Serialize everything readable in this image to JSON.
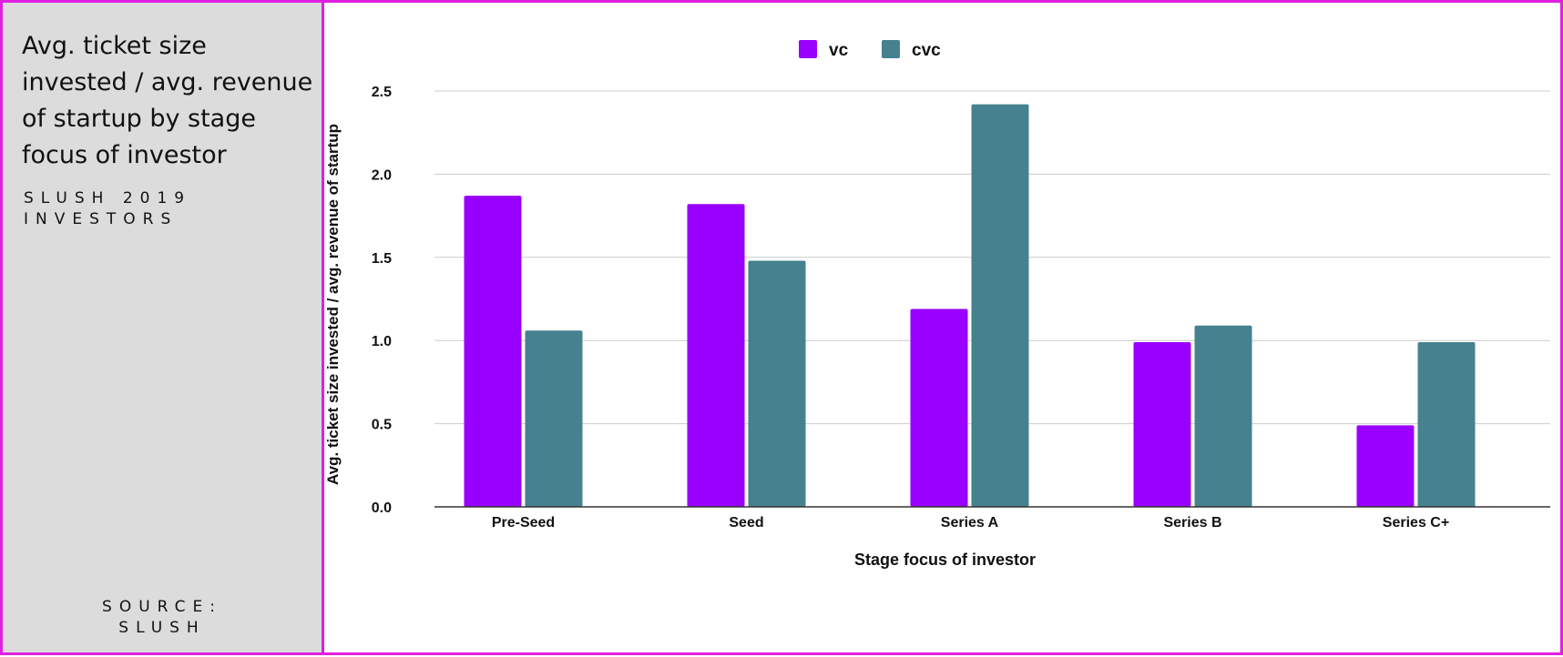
{
  "panel": {
    "title": "Avg. ticket size invested / avg. revenue of startup by stage focus of investor",
    "subtitle": "SLUSH 2019 INVESTORS",
    "source_line1": "SOURCE:",
    "source_line2": "SLUSH"
  },
  "colors": {
    "vc": "#9900ff",
    "cvc": "#45818e",
    "border": "#e020e0",
    "panel_bg": "#dcdcdc",
    "grid": "#cccccc"
  },
  "chart_data": {
    "type": "bar",
    "categories": [
      "Pre-Seed",
      "Seed",
      "Series A",
      "Series B",
      "Series C+"
    ],
    "series": [
      {
        "name": "vc",
        "values": [
          1.87,
          1.82,
          1.19,
          0.99,
          0.49
        ]
      },
      {
        "name": "cvc",
        "values": [
          1.06,
          1.48,
          2.42,
          1.09,
          0.99
        ]
      }
    ],
    "xlabel": "Stage focus of investor",
    "ylabel": "Avg. ticket size invested / avg. revenue of startup",
    "ylim": [
      0,
      2.5
    ],
    "yticks": [
      "0.0",
      "0.5",
      "1.0",
      "1.5",
      "2.0",
      "2.5"
    ],
    "legend_position": "top-center",
    "grid": true
  }
}
